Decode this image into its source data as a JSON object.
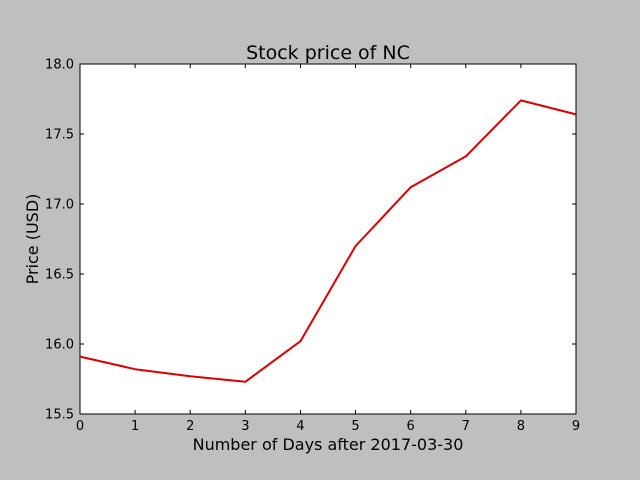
{
  "chart_data": {
    "type": "line",
    "title": "Stock price of NC",
    "xlabel": "Number of Days after 2017-03-30",
    "ylabel": "Price (USD)",
    "x": [
      0,
      1,
      2,
      3,
      4,
      5,
      6,
      7,
      8,
      9
    ],
    "series": [
      {
        "color": "#dd0000",
        "values": [
          15.91,
          15.82,
          15.77,
          15.73,
          16.02,
          16.7,
          17.12,
          17.34,
          17.74,
          17.64
        ]
      }
    ],
    "xlim": [
      0,
      9
    ],
    "ylim": [
      15.5,
      18.0
    ],
    "xticks": [
      "0",
      "1",
      "2",
      "3",
      "4",
      "5",
      "6",
      "7",
      "8",
      "9"
    ],
    "yticks": [
      "15.5",
      "16.0",
      "16.5",
      "17.0",
      "17.5",
      "18.0"
    ],
    "grid": false,
    "background_color": "#bfbfbf",
    "plot_area_color": "#ffffff"
  }
}
